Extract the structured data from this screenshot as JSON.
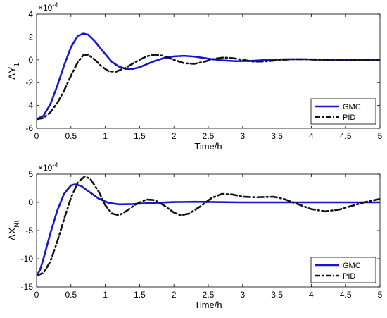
{
  "chart_data": [
    {
      "type": "line",
      "title": "",
      "xlabel": "Time/h",
      "ylabel": "ΔY",
      "ylabel_sub": "1",
      "exponent": "×10",
      "exponent_power": "-4",
      "xlim": [
        0,
        5
      ],
      "ylim": [
        -6,
        4
      ],
      "xticks": [
        "0",
        "0.5",
        "1",
        "1.5",
        "2",
        "2.5",
        "3",
        "3.5",
        "4",
        "4.5",
        "5"
      ],
      "yticks": [
        "-6",
        "-4",
        "-2",
        "0",
        "2",
        "4"
      ],
      "legend_position": "bottom-right",
      "grid": false,
      "series": [
        {
          "name": "GMC",
          "color": "#1515d6",
          "style": "solid",
          "points": [
            [
              0,
              -5.2
            ],
            [
              0.1,
              -4.9
            ],
            [
              0.2,
              -3.9
            ],
            [
              0.3,
              -2.3
            ],
            [
              0.4,
              -0.5
            ],
            [
              0.5,
              1.1
            ],
            [
              0.6,
              2.1
            ],
            [
              0.68,
              2.3
            ],
            [
              0.75,
              2.2
            ],
            [
              0.85,
              1.6
            ],
            [
              1.0,
              0.5
            ],
            [
              1.1,
              -0.2
            ],
            [
              1.2,
              -0.6
            ],
            [
              1.3,
              -0.8
            ],
            [
              1.4,
              -0.8
            ],
            [
              1.5,
              -0.65
            ],
            [
              1.6,
              -0.4
            ],
            [
              1.7,
              -0.15
            ],
            [
              1.85,
              0.15
            ],
            [
              2.0,
              0.3
            ],
            [
              2.15,
              0.35
            ],
            [
              2.3,
              0.28
            ],
            [
              2.5,
              0.1
            ],
            [
              2.7,
              -0.05
            ],
            [
              2.9,
              -0.12
            ],
            [
              3.1,
              -0.1
            ],
            [
              3.3,
              -0.03
            ],
            [
              3.6,
              0.05
            ],
            [
              3.9,
              0.05
            ],
            [
              4.2,
              0.02
            ],
            [
              4.6,
              0.0
            ],
            [
              5.0,
              0.0
            ]
          ]
        },
        {
          "name": "PID",
          "color": "#111111",
          "style": "dashdot",
          "points": [
            [
              0,
              -5.2
            ],
            [
              0.1,
              -5.1
            ],
            [
              0.2,
              -4.6
            ],
            [
              0.3,
              -3.8
            ],
            [
              0.4,
              -2.7
            ],
            [
              0.5,
              -1.4
            ],
            [
              0.6,
              -0.2
            ],
            [
              0.68,
              0.4
            ],
            [
              0.75,
              0.45
            ],
            [
              0.85,
              0.0
            ],
            [
              0.95,
              -0.6
            ],
            [
              1.05,
              -1.0
            ],
            [
              1.15,
              -1.05
            ],
            [
              1.3,
              -0.7
            ],
            [
              1.45,
              -0.15
            ],
            [
              1.6,
              0.3
            ],
            [
              1.72,
              0.45
            ],
            [
              1.85,
              0.35
            ],
            [
              2.0,
              0.0
            ],
            [
              2.15,
              -0.3
            ],
            [
              2.3,
              -0.35
            ],
            [
              2.45,
              -0.15
            ],
            [
              2.6,
              0.1
            ],
            [
              2.72,
              0.2
            ],
            [
              2.85,
              0.15
            ],
            [
              3.0,
              0.0
            ],
            [
              3.15,
              -0.15
            ],
            [
              3.3,
              -0.15
            ],
            [
              3.5,
              -0.05
            ],
            [
              3.7,
              0.05
            ],
            [
              3.9,
              0.05
            ],
            [
              4.1,
              0.0
            ],
            [
              4.4,
              -0.05
            ],
            [
              4.7,
              0.0
            ],
            [
              5.0,
              0.0
            ]
          ]
        }
      ]
    },
    {
      "type": "line",
      "title": "",
      "xlabel": "Time/h",
      "ylabel": "ΔX",
      "ylabel_sub": "Nt",
      "exponent": "×10",
      "exponent_power": "-4",
      "xlim": [
        0,
        5
      ],
      "ylim": [
        -15,
        5
      ],
      "xticks": [
        "0",
        "0.5",
        "1",
        "1.5",
        "2",
        "2.5",
        "3",
        "3.5",
        "4",
        "4.5",
        "5"
      ],
      "yticks": [
        "-15",
        "-10",
        "-5",
        "0",
        "5"
      ],
      "legend_position": "bottom-right",
      "grid": false,
      "series": [
        {
          "name": "GMC",
          "color": "#1515d6",
          "style": "solid",
          "points": [
            [
              0,
              -13
            ],
            [
              0.05,
              -12.0
            ],
            [
              0.1,
              -10.0
            ],
            [
              0.2,
              -5.5
            ],
            [
              0.3,
              -1.5
            ],
            [
              0.4,
              1.5
            ],
            [
              0.5,
              3.0
            ],
            [
              0.56,
              3.2
            ],
            [
              0.65,
              2.9
            ],
            [
              0.75,
              2.0
            ],
            [
              0.9,
              0.7
            ],
            [
              1.05,
              -0.1
            ],
            [
              1.2,
              -0.35
            ],
            [
              1.4,
              -0.3
            ],
            [
              1.7,
              -0.1
            ],
            [
              2.0,
              0.05
            ],
            [
              2.3,
              0.1
            ],
            [
              2.6,
              0.05
            ],
            [
              3.0,
              0.0
            ],
            [
              3.5,
              0.0
            ],
            [
              4.0,
              0.0
            ],
            [
              4.5,
              0.0
            ],
            [
              5.0,
              0.0
            ]
          ]
        },
        {
          "name": "PID",
          "color": "#111111",
          "style": "dashdot",
          "points": [
            [
              0,
              -13
            ],
            [
              0.1,
              -12.5
            ],
            [
              0.2,
              -10.5
            ],
            [
              0.3,
              -7.0
            ],
            [
              0.4,
              -3.0
            ],
            [
              0.5,
              0.8
            ],
            [
              0.6,
              3.5
            ],
            [
              0.7,
              4.6
            ],
            [
              0.78,
              4.2
            ],
            [
              0.9,
              2.0
            ],
            [
              1.0,
              -0.5
            ],
            [
              1.1,
              -2.0
            ],
            [
              1.2,
              -2.3
            ],
            [
              1.3,
              -1.6
            ],
            [
              1.45,
              -0.3
            ],
            [
              1.6,
              0.5
            ],
            [
              1.72,
              0.4
            ],
            [
              1.85,
              -0.5
            ],
            [
              2.0,
              -1.8
            ],
            [
              2.1,
              -2.3
            ],
            [
              2.22,
              -2.0
            ],
            [
              2.4,
              -0.6
            ],
            [
              2.55,
              0.8
            ],
            [
              2.7,
              1.5
            ],
            [
              2.85,
              1.4
            ],
            [
              3.0,
              1.0
            ],
            [
              3.2,
              0.9
            ],
            [
              3.45,
              1.0
            ],
            [
              3.6,
              0.6
            ],
            [
              3.8,
              -0.3
            ],
            [
              4.0,
              -1.2
            ],
            [
              4.2,
              -1.6
            ],
            [
              4.4,
              -1.3
            ],
            [
              4.6,
              -0.6
            ],
            [
              4.8,
              0.1
            ],
            [
              5.0,
              0.6
            ]
          ]
        }
      ]
    }
  ]
}
